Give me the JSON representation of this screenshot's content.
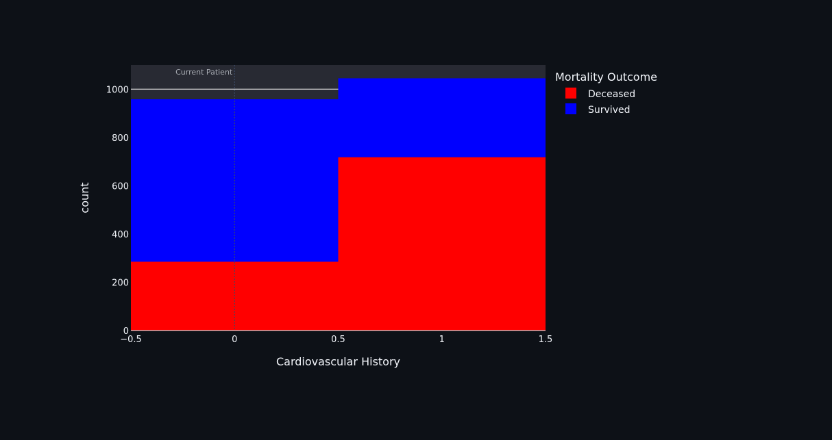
{
  "chart_data": {
    "type": "bar",
    "barmode": "stack",
    "title": "",
    "xlabel": "Cardiovascular History",
    "ylabel": "count",
    "categories": [
      0,
      1
    ],
    "bin_width": 1,
    "xlim": [
      -0.5,
      1.5
    ],
    "ylim": [
      0,
      1100
    ],
    "x_ticks": [
      {
        "value": -0.5,
        "label": "−0.5"
      },
      {
        "value": 0,
        "label": "0"
      },
      {
        "value": 0.5,
        "label": "0.5"
      },
      {
        "value": 1,
        "label": "1"
      },
      {
        "value": 1.5,
        "label": "1.5"
      }
    ],
    "y_ticks": [
      {
        "value": 0,
        "label": "0"
      },
      {
        "value": 200,
        "label": "200"
      },
      {
        "value": 400,
        "label": "400"
      },
      {
        "value": 600,
        "label": "600"
      },
      {
        "value": 800,
        "label": "800"
      },
      {
        "value": 1000,
        "label": "1000"
      }
    ],
    "series": [
      {
        "name": "Deceased",
        "color": "#ff0000",
        "values": [
          285,
          718
        ]
      },
      {
        "name": "Survived",
        "color": "#0000ff",
        "values": [
          673,
          327
        ]
      }
    ],
    "legend": {
      "title": "Mortality Outcome",
      "position": "top-right"
    },
    "annotations": [
      {
        "type": "vline",
        "x": 0,
        "text": "Current Patient"
      },
      {
        "type": "hline",
        "y": 1000,
        "x_range": [
          -0.5,
          0.5
        ]
      }
    ],
    "grid": false
  },
  "colors": {
    "page_bg": "#0d1117",
    "plot_bg": "#282a33",
    "text": "#f2f5fa",
    "annotation_text": "#a8acb3"
  }
}
